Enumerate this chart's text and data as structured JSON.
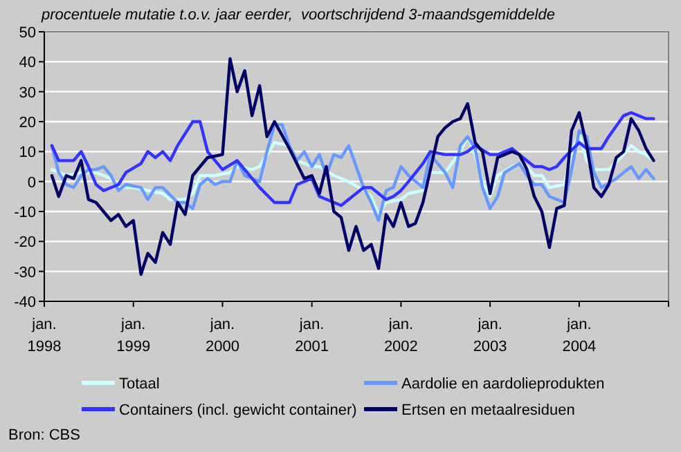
{
  "chart_data": {
    "type": "line",
    "title": "procentuele mutatie t.o.v. jaar eerder,  voortschrijdend 3-maandsgemiddelde",
    "xlim": [
      "1998-01",
      "2005-01"
    ],
    "xticks": [
      {
        "value": "1998-01",
        "label": "jan. 1998"
      },
      {
        "value": "1999-01",
        "label": "jan. 1999"
      },
      {
        "value": "2000-01",
        "label": "jan. 2000"
      },
      {
        "value": "2001-01",
        "label": "jan. 2001"
      },
      {
        "value": "2002-01",
        "label": "jan. 2002"
      },
      {
        "value": "2003-01",
        "label": "jan. 2003"
      },
      {
        "value": "2004-01",
        "label": "jan. 2004"
      },
      {
        "value": "2005-01",
        "label": null
      }
    ],
    "ylim": [
      -40,
      50
    ],
    "yticks": [
      -40,
      -30,
      -20,
      -10,
      0,
      10,
      20,
      30,
      40,
      50
    ],
    "grid": "y",
    "legend": "bottom",
    "line_style": "solid",
    "marker": "none",
    "series": [
      {
        "name": "Totaal",
        "color": "#ccffff",
        "x": [
          "1998-02",
          "1998-04",
          "1998-06",
          "1998-08",
          "1998-10",
          "1998-11",
          "1999-01",
          "1999-03",
          "1999-05",
          "1999-06",
          "1999-08",
          "1999-09",
          "1999-10",
          "1999-12",
          "2000-02",
          "2000-03",
          "2000-05",
          "2000-06",
          "2000-08",
          "2000-10",
          "2000-11",
          "2001-01",
          "2001-02",
          "2001-04",
          "2001-06",
          "2001-08",
          "2001-09",
          "2001-10",
          "2001-11",
          "2002-01",
          "2002-02",
          "2002-04",
          "2002-05",
          "2002-07",
          "2002-09",
          "2002-10",
          "2002-11",
          "2002-12",
          "2003-01",
          "2003-02",
          "2003-04",
          "2003-05",
          "2003-06",
          "2003-07",
          "2003-08",
          "2003-09",
          "2003-11",
          "2003-12",
          "2004-01",
          "2004-02",
          "2004-03",
          "2004-05",
          "2004-07",
          "2004-08",
          "2004-09",
          "2004-10",
          "2004-11"
        ],
        "values": [
          4,
          2,
          3,
          3,
          1,
          -2,
          -2,
          -3,
          -4,
          -6,
          -6,
          -4,
          2,
          2,
          3,
          5,
          4,
          5,
          13,
          12,
          7,
          5,
          5,
          2,
          0,
          -3,
          -5,
          -11,
          -7,
          -6,
          -4,
          -3,
          3,
          3,
          10,
          15,
          9,
          0,
          -5,
          2,
          5,
          6,
          5,
          2,
          2,
          -2,
          -1,
          10,
          16,
          7,
          4,
          4,
          9,
          12,
          10,
          9,
          7
        ]
      },
      {
        "name": "Aardolie en aardolieprodukten",
        "color": "#6699ff",
        "x": [
          "1998-02",
          "1998-03",
          "1998-04",
          "1998-05",
          "1998-06",
          "1998-07",
          "1998-08",
          "1998-09",
          "1998-10",
          "1998-11",
          "1998-12",
          "1999-02",
          "1999-03",
          "1999-04",
          "1999-05",
          "1999-07",
          "1999-08",
          "1999-09",
          "1999-10",
          "1999-11",
          "1999-12",
          "2000-01",
          "2000-02",
          "2000-03",
          "2000-04",
          "2000-06",
          "2000-07",
          "2000-08",
          "2000-09",
          "2000-10",
          "2000-11",
          "2000-12",
          "2001-01",
          "2001-02",
          "2001-03",
          "2001-04",
          "2001-05",
          "2001-06",
          "2001-08",
          "2001-09",
          "2001-10",
          "2001-11",
          "2001-12",
          "2002-01",
          "2002-02",
          "2002-04",
          "2002-05",
          "2002-07",
          "2002-08",
          "2002-09",
          "2002-10",
          "2002-11",
          "2002-12",
          "2003-01",
          "2003-02",
          "2003-03",
          "2003-05",
          "2003-06",
          "2003-07",
          "2003-08",
          "2003-09",
          "2003-11",
          "2003-12",
          "2004-01",
          "2004-02",
          "2004-03",
          "2004-04",
          "2004-06",
          "2004-07",
          "2004-08",
          "2004-09",
          "2004-10",
          "2004-11"
        ],
        "values": [
          12,
          3,
          -1,
          -2,
          2,
          4,
          4,
          5,
          2,
          -3,
          -1,
          -2,
          -6,
          -2,
          -2,
          -7,
          -7,
          -9,
          -1,
          1,
          -1,
          0,
          0,
          7,
          2,
          0,
          10,
          19,
          19,
          12,
          7,
          10,
          5,
          9,
          2,
          9,
          8,
          12,
          -2,
          -7,
          -13,
          -3,
          -2,
          5,
          2,
          -2,
          9,
          3,
          -2,
          12,
          15,
          11,
          -2,
          -9,
          -5,
          3,
          6,
          2,
          -1,
          -1,
          -5,
          -7,
          4,
          17,
          15,
          3,
          -2,
          1,
          3,
          5,
          1,
          4,
          1
        ]
      },
      {
        "name": "Containers (incl. gewicht container)",
        "color": "#3333ff",
        "x": [
          "1998-02",
          "1998-03",
          "1998-05",
          "1998-06",
          "1998-07",
          "1998-08",
          "1998-09",
          "1998-11",
          "1998-12",
          "1999-02",
          "1999-03",
          "1999-04",
          "1999-05",
          "1999-06",
          "1999-07",
          "1999-08",
          "1999-09",
          "1999-10",
          "1999-11",
          "2000-01",
          "2000-03",
          "2000-04",
          "2000-06",
          "2000-08",
          "2000-10",
          "2000-11",
          "2001-01",
          "2001-02",
          "2001-05",
          "2001-08",
          "2001-09",
          "2001-11",
          "2001-12",
          "2002-01",
          "2002-02",
          "2002-04",
          "2002-05",
          "2002-07",
          "2002-09",
          "2002-10",
          "2002-11",
          "2003-01",
          "2003-02",
          "2003-04",
          "2003-05",
          "2003-07",
          "2003-08",
          "2003-09",
          "2003-10",
          "2003-11",
          "2004-01",
          "2004-02",
          "2004-04",
          "2004-05",
          "2004-07",
          "2004-08",
          "2004-10",
          "2004-11"
        ],
        "values": [
          12,
          7,
          7,
          10,
          5,
          -1,
          -3,
          -1,
          3,
          6,
          10,
          8,
          10,
          7,
          12,
          16,
          20,
          20,
          10,
          4,
          7,
          4,
          -2,
          -7,
          -7,
          -1,
          1,
          -5,
          -8,
          -2,
          -2,
          -6,
          -5,
          -3,
          0,
          6,
          10,
          9,
          9,
          10,
          12,
          9,
          9,
          11,
          9,
          5,
          5,
          4,
          5,
          8,
          13,
          11,
          11,
          15,
          22,
          23,
          21,
          21
        ]
      },
      {
        "name": "Ertsen en metaalresiduen",
        "color": "#000066",
        "x": [
          "1998-02",
          "1998-03",
          "1998-04",
          "1998-05",
          "1998-06",
          "1998-07",
          "1998-08",
          "1998-10",
          "1998-11",
          "1998-12",
          "1999-01",
          "1999-02",
          "1999-03",
          "1999-04",
          "1999-05",
          "1999-06",
          "1999-07",
          "1999-08",
          "1999-09",
          "1999-10",
          "1999-11",
          "2000-01",
          "2000-02",
          "2000-03",
          "2000-04",
          "2000-05",
          "2000-06",
          "2000-07",
          "2000-08",
          "2000-10",
          "2000-12",
          "2001-01",
          "2001-02",
          "2001-03",
          "2001-04",
          "2001-05",
          "2001-06",
          "2001-07",
          "2001-08",
          "2001-09",
          "2001-10",
          "2001-11",
          "2001-12",
          "2002-01",
          "2002-02",
          "2002-03",
          "2002-04",
          "2002-06",
          "2002-07",
          "2002-08",
          "2002-09",
          "2002-10",
          "2002-11",
          "2002-12",
          "2003-01",
          "2003-02",
          "2003-04",
          "2003-05",
          "2003-06",
          "2003-07",
          "2003-08",
          "2003-09",
          "2003-10",
          "2003-11",
          "2003-12",
          "2004-01",
          "2004-02",
          "2004-03",
          "2004-04",
          "2004-05",
          "2004-06",
          "2004-07",
          "2004-08",
          "2004-09",
          "2004-10",
          "2004-11"
        ],
        "values": [
          2,
          -5,
          2,
          1,
          7,
          -6,
          -7,
          -13,
          -11,
          -15,
          -13,
          -31,
          -24,
          -27,
          -17,
          -21,
          -7,
          -11,
          2,
          5,
          8,
          9,
          41,
          30,
          37,
          22,
          32,
          15,
          20,
          11,
          1,
          2,
          -4,
          5,
          -10,
          -12,
          -23,
          -15,
          -23,
          -21,
          -29,
          -11,
          -15,
          -7,
          -15,
          -14,
          -7,
          15,
          18,
          20,
          21,
          26,
          13,
          10,
          -4,
          8,
          10,
          9,
          4,
          -5,
          -10,
          -22,
          -9,
          -8,
          17,
          23,
          12,
          -2,
          -5,
          -1,
          8,
          10,
          21,
          17,
          11,
          7
        ]
      }
    ],
    "annotations": [
      "Bron: CBS"
    ]
  }
}
